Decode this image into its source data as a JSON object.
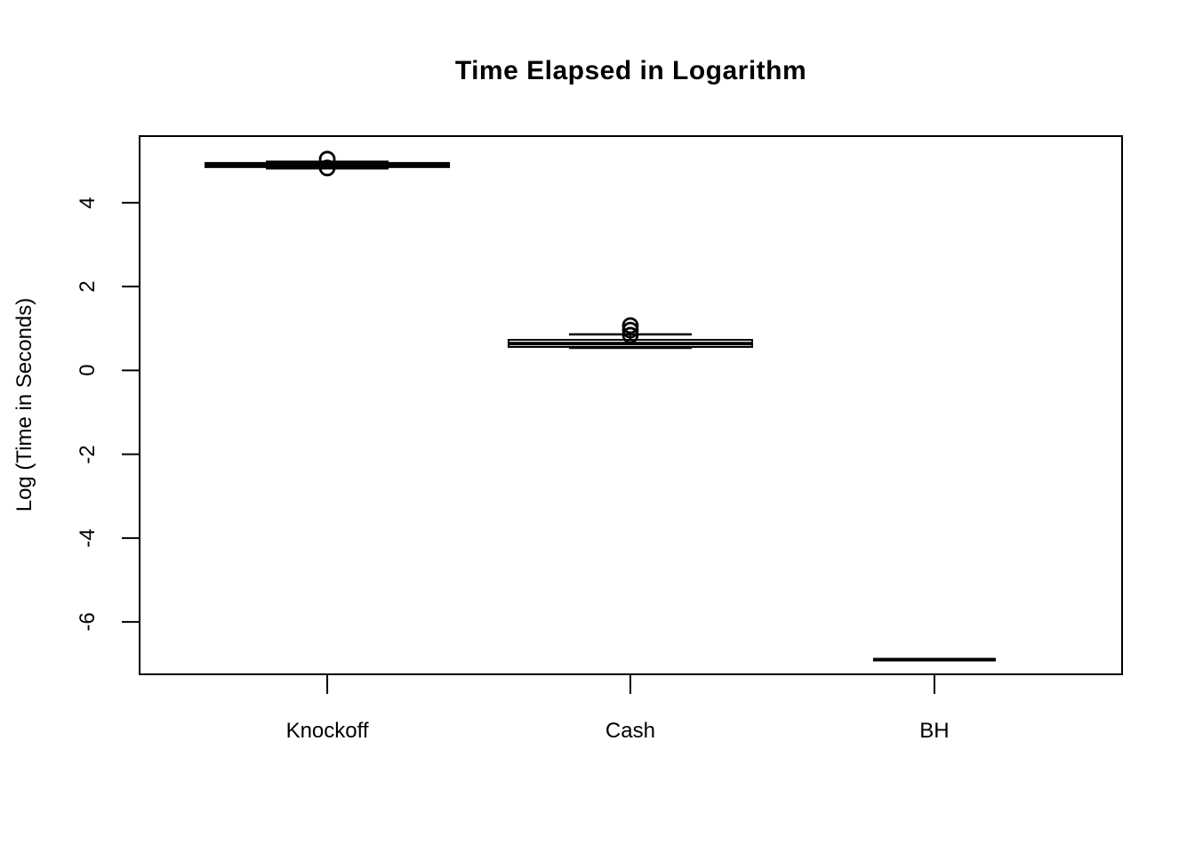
{
  "figure": {
    "background_color": "#ffffff",
    "foreground_color": "#000000"
  },
  "chart_data": {
    "type": "boxplot",
    "title": "Time Elapsed in Logarithm",
    "xlabel": "",
    "ylabel": "Log (Time in Seconds)",
    "categories": [
      "Knockoff",
      "Cash",
      "BH"
    ],
    "yticks": [
      4,
      2,
      0,
      -2,
      -4,
      -6
    ],
    "ylim": [
      -7.25,
      5.59
    ],
    "grid": false,
    "legend": false,
    "axis_style": "R-base-graphics, framed plot box, ticks outside, y tick labels rotated 90deg",
    "series": [
      {
        "name": "Knockoff",
        "median": 4.9,
        "q1": 4.85,
        "q3": 4.95,
        "whisker_low": 4.82,
        "whisker_high": 4.98,
        "outliers": [
          5.04,
          4.83
        ],
        "collapsed": false
      },
      {
        "name": "Cash",
        "median": 0.64,
        "q1": 0.56,
        "q3": 0.73,
        "whisker_low": 0.54,
        "whisker_high": 0.86,
        "outliers": [
          1.07,
          0.96,
          0.84
        ],
        "collapsed": false
      },
      {
        "name": "BH",
        "median": -6.9,
        "q1": -6.9,
        "q3": -6.9,
        "whisker_low": -6.9,
        "whisker_high": -6.9,
        "outliers": [],
        "collapsed": true
      }
    ]
  }
}
